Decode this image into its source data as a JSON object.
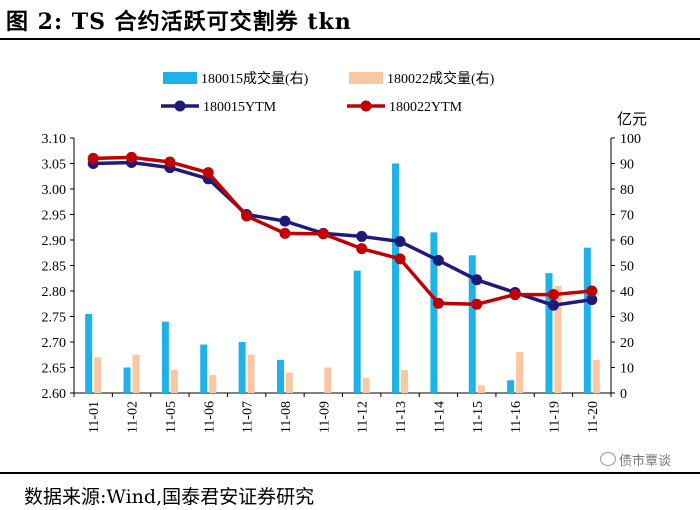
{
  "header": {
    "title": "图 2:  TS 合约活跃可交割券 tkn"
  },
  "footer": {
    "source": "数据来源:Wind,国泰君安证券研究",
    "watermark": "债市覃谈"
  },
  "colors": {
    "bar_180015": "#1fb2e8",
    "bar_180022": "#f9c8a3",
    "line_180015": "#1f1a78",
    "line_180022": "#c00000"
  },
  "chart_data": {
    "type": "bar+line",
    "categories": [
      "11-01",
      "11-02",
      "11-05",
      "11-06",
      "11-07",
      "11-08",
      "11-09",
      "11-12",
      "11-13",
      "11-14",
      "11-15",
      "11-16",
      "11-19",
      "11-20"
    ],
    "y_left": {
      "ticks": [
        "3.10",
        "3.05",
        "3.00",
        "2.95",
        "2.90",
        "2.85",
        "2.80",
        "2.75",
        "2.70",
        "2.65",
        "2.60"
      ],
      "ylim": [
        2.6,
        3.1
      ]
    },
    "y_right": {
      "label": "亿元",
      "ticks": [
        "100",
        "90",
        "80",
        "70",
        "60",
        "50",
        "40",
        "30",
        "20",
        "10",
        "0"
      ],
      "ylim": [
        0,
        100
      ]
    },
    "legend": {
      "bar_180015": "180015成交量(右)",
      "bar_180022": "180022成交量(右)",
      "line_180015": "180015YTM",
      "line_180022": "180022YTM"
    },
    "series": [
      {
        "name": "180015成交量(右)",
        "type": "bar",
        "axis": "right",
        "values": [
          31,
          10,
          28,
          19,
          20,
          13,
          0,
          48,
          90,
          63,
          54,
          5,
          47,
          57
        ]
      },
      {
        "name": "180022成交量(右)",
        "type": "bar",
        "axis": "right",
        "values": [
          14,
          15,
          9,
          7,
          15,
          8,
          10,
          6,
          9,
          0,
          3,
          16,
          42,
          13
        ]
      },
      {
        "name": "180015YTM",
        "type": "line",
        "axis": "left",
        "values": [
          3.05,
          3.052,
          3.042,
          3.02,
          2.95,
          2.937,
          2.913,
          2.907,
          2.897,
          2.86,
          2.822,
          2.797,
          2.772,
          2.783
        ]
      },
      {
        "name": "180022YTM",
        "type": "line",
        "axis": "left",
        "values": [
          3.06,
          3.062,
          3.053,
          3.032,
          2.947,
          2.913,
          2.912,
          2.883,
          2.863,
          2.776,
          2.774,
          2.793,
          2.793,
          2.8
        ]
      }
    ]
  }
}
